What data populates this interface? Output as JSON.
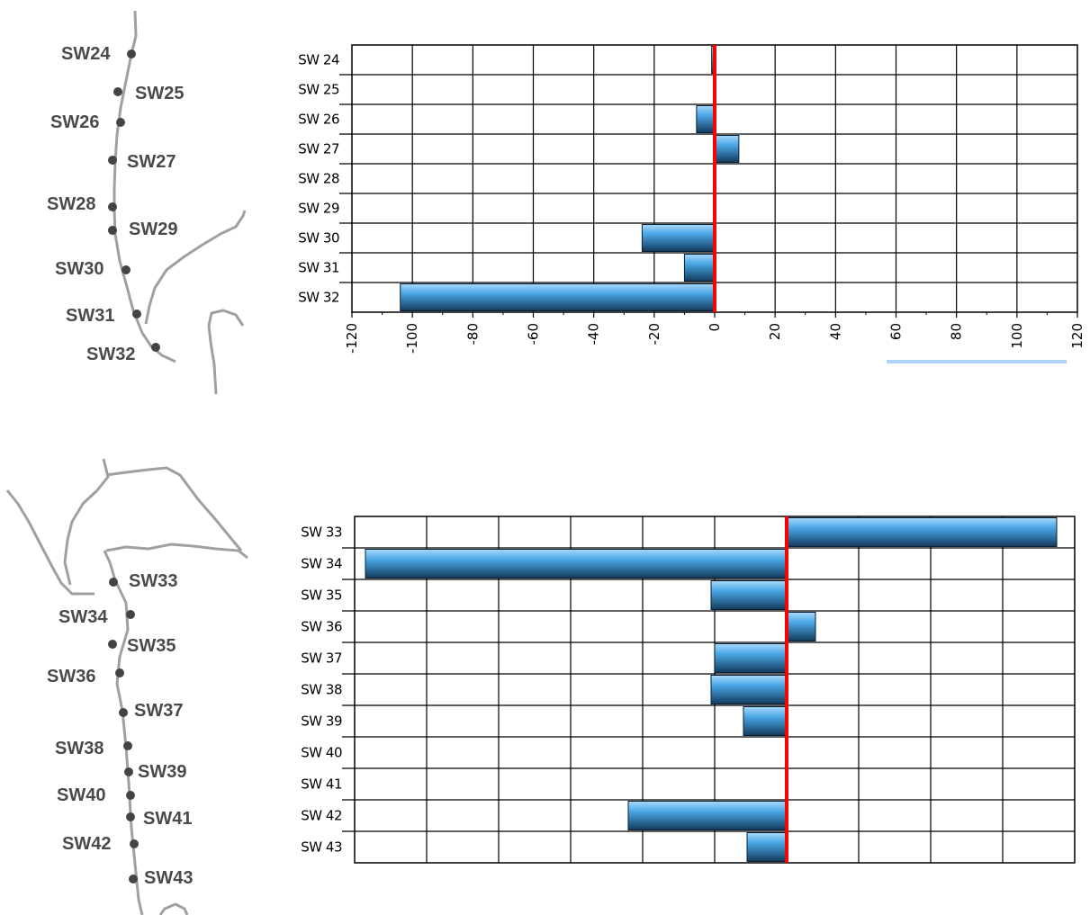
{
  "map1": {
    "stations": [
      "SW24",
      "SW25",
      "SW26",
      "SW27",
      "SW28",
      "SW29",
      "SW30",
      "SW31",
      "SW32"
    ]
  },
  "map2": {
    "stations": [
      "SW33",
      "SW34",
      "SW35",
      "SW36",
      "SW37",
      "SW38",
      "SW39",
      "SW40",
      "SW41",
      "SW42",
      "SW43"
    ]
  },
  "colors": {
    "bar": "#4aa8e6",
    "bar_dark": "#1a4f7a",
    "zero_line": "#ff0000",
    "grid": "#000000",
    "map_line": "#a0a0a0",
    "map_dot": "#444444"
  },
  "chart_data": [
    {
      "type": "bar",
      "orientation": "horizontal",
      "categories": [
        "SW 24",
        "SW 25",
        "SW 26",
        "SW 27",
        "SW 28",
        "SW 29",
        "SW 30",
        "SW 31",
        "SW 32"
      ],
      "values": [
        -1,
        0,
        -6,
        8,
        0,
        0,
        -24,
        -10,
        -104
      ],
      "xlim": [
        -120,
        120
      ],
      "xticks": [
        "-120",
        "-100",
        "-80",
        "-60",
        "-40",
        "-20",
        "0",
        "20",
        "40",
        "60",
        "80",
        "100",
        "120"
      ],
      "grid": true
    },
    {
      "type": "bar",
      "orientation": "horizontal",
      "categories": [
        "SW 33",
        "SW 34",
        "SW 35",
        "SW 36",
        "SW 37",
        "SW 38",
        "SW 39",
        "SW 40",
        "SW 41",
        "SW 42",
        "SW 43"
      ],
      "values": [
        75,
        -117,
        -21,
        8,
        -20,
        -21,
        -12,
        0,
        0,
        -44,
        -11
      ],
      "xlim": [
        -120,
        80
      ],
      "grid": true
    }
  ]
}
